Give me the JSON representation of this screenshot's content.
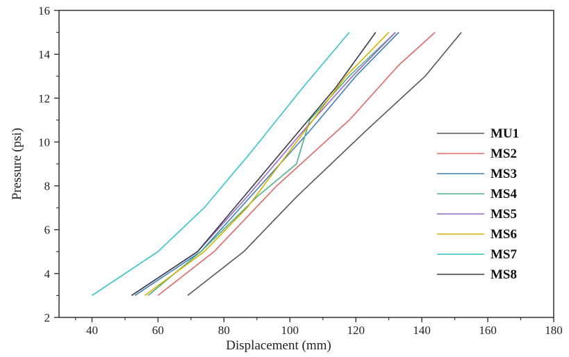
{
  "chart_data": {
    "type": "line",
    "title": "",
    "xlabel": "Displacement (mm)",
    "ylabel": "Pressure (psi)",
    "xlim": [
      30,
      180
    ],
    "ylim": [
      2,
      16
    ],
    "xticks": [
      40,
      60,
      80,
      100,
      120,
      140,
      160,
      180
    ],
    "yticks": [
      2,
      4,
      6,
      8,
      10,
      12,
      14,
      16
    ],
    "grid": false,
    "legend_position": "center-right",
    "series": [
      {
        "name": "MU1",
        "color": "#555555",
        "x": [
          69,
          86,
          102,
          123,
          141,
          152
        ],
        "y": [
          3,
          5,
          7.5,
          10.5,
          13,
          15
        ]
      },
      {
        "name": "MS2",
        "color": "#e06666",
        "x": [
          60,
          77,
          96,
          118,
          133,
          144
        ],
        "y": [
          3,
          5,
          8,
          11,
          13.5,
          15
        ]
      },
      {
        "name": "MS3",
        "color": "#3d7fb5",
        "x": [
          53,
          73,
          88,
          106,
          120,
          133
        ],
        "y": [
          3,
          5,
          7.5,
          10.5,
          13,
          15
        ]
      },
      {
        "name": "MS4",
        "color": "#4daf8a",
        "x": [
          57,
          73,
          90,
          102,
          106,
          118,
          132
        ],
        "y": [
          3,
          5,
          7.5,
          9,
          11,
          13,
          15
        ]
      },
      {
        "name": "MS5",
        "color": "#9966cc",
        "x": [
          52,
          72,
          87,
          104,
          119,
          132
        ],
        "y": [
          3,
          5,
          7.5,
          10.5,
          13,
          15
        ]
      },
      {
        "name": "MS6",
        "color": "#d4b000",
        "x": [
          56,
          74,
          87,
          102,
          117,
          130
        ],
        "y": [
          3,
          5,
          7,
          10,
          13,
          15
        ]
      },
      {
        "name": "MS7",
        "color": "#33c4cc",
        "x": [
          40,
          60,
          74,
          88,
          104,
          118
        ],
        "y": [
          3,
          5,
          7,
          9.5,
          12.5,
          15
        ]
      },
      {
        "name": "MS8",
        "color": "#3a3a48",
        "x": [
          52,
          72,
          86,
          100,
          114,
          126
        ],
        "y": [
          3,
          5,
          7.5,
          10,
          12.5,
          15
        ]
      }
    ]
  }
}
